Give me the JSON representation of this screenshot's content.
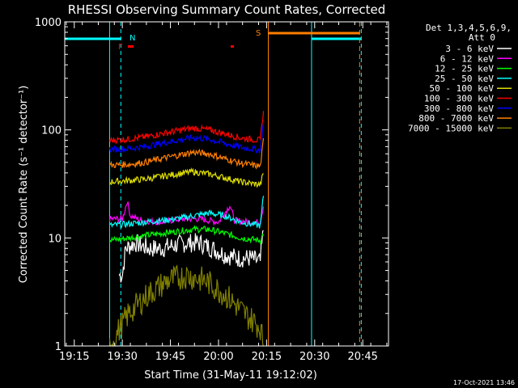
{
  "chart_data": {
    "type": "line",
    "title": "RHESSI Observing Summary Count Rates, Corrected",
    "xlabel": "Start Time (31-May-11 19:12:02)",
    "ylabel": "Corrected Count Rate (s⁻¹ detector⁻¹)",
    "y_scale": "log",
    "ylim": [
      1,
      1000
    ],
    "xlim_minutes": [
      0,
      101
    ],
    "x_tick_labels": [
      "19:15",
      "19:30",
      "19:45",
      "20:00",
      "20:15",
      "20:30",
      "20:45"
    ],
    "x_ticks_minutes": [
      2.97,
      17.97,
      32.97,
      47.97,
      62.97,
      77.97,
      92.97
    ],
    "y_tick_labels": [
      "1",
      "10",
      "100",
      "1000"
    ],
    "y_ticks": [
      1,
      10,
      100,
      1000
    ],
    "grid": false,
    "legend_placement": "top-right",
    "legend_header": [
      "Det 1,3,4,5,6,9,",
      "Att 0"
    ],
    "footer_date": "17-Oct-2021 13:46",
    "markers": {
      "N": "N",
      "F": "F",
      "S": "S"
    },
    "series": [
      {
        "name": "3 - 6 keV",
        "color": "#ffffff",
        "values_by_minute": [
          [
            17,
            4.5
          ],
          [
            18,
            4.6
          ],
          [
            19,
            8
          ],
          [
            22,
            9
          ],
          [
            26,
            8
          ],
          [
            30,
            8
          ],
          [
            34,
            8.5
          ],
          [
            38,
            9
          ],
          [
            42,
            9
          ],
          [
            46,
            8
          ],
          [
            50,
            7
          ],
          [
            54,
            6.5
          ],
          [
            58,
            6.5
          ],
          [
            61,
            6
          ],
          [
            62,
            12
          ]
        ]
      },
      {
        "name": "6 - 12 keV",
        "color": "#ff00ff",
        "values_by_minute": [
          [
            14,
            15
          ],
          [
            18,
            15
          ],
          [
            19.5,
            22
          ],
          [
            20.5,
            16
          ],
          [
            24,
            14.5
          ],
          [
            30,
            14
          ],
          [
            36,
            15
          ],
          [
            42,
            15
          ],
          [
            48,
            14
          ],
          [
            51.5,
            20
          ],
          [
            53,
            14.5
          ],
          [
            58,
            14
          ],
          [
            61,
            14
          ],
          [
            62,
            20
          ]
        ]
      },
      {
        "name": "12 - 25 keV",
        "color": "#00ff00",
        "values_by_minute": [
          [
            14,
            9.5
          ],
          [
            20,
            10
          ],
          [
            25,
            10.5
          ],
          [
            30,
            11
          ],
          [
            35,
            11.5
          ],
          [
            40,
            12
          ],
          [
            45,
            12
          ],
          [
            50,
            11
          ],
          [
            55,
            10
          ],
          [
            61,
            9.5
          ],
          [
            62,
            11
          ]
        ]
      },
      {
        "name": "25 - 50 keV",
        "color": "#00ffff",
        "values_by_minute": [
          [
            14,
            13
          ],
          [
            20,
            13.5
          ],
          [
            25,
            14
          ],
          [
            30,
            14.5
          ],
          [
            35,
            15
          ],
          [
            40,
            16
          ],
          [
            45,
            17
          ],
          [
            50,
            16
          ],
          [
            55,
            14
          ],
          [
            61,
            13
          ],
          [
            62,
            25
          ]
        ]
      },
      {
        "name": "50 - 100 keV",
        "color": "#dddd00",
        "values_by_minute": [
          [
            14,
            33
          ],
          [
            20,
            34
          ],
          [
            25,
            35
          ],
          [
            30,
            37
          ],
          [
            35,
            39
          ],
          [
            40,
            41
          ],
          [
            45,
            39
          ],
          [
            50,
            36
          ],
          [
            55,
            33
          ],
          [
            61,
            31
          ],
          [
            62,
            40
          ]
        ]
      },
      {
        "name": "100 - 300 keV",
        "color": "#ff0000",
        "values_by_minute": [
          [
            14,
            80
          ],
          [
            20,
            82
          ],
          [
            25,
            86
          ],
          [
            30,
            92
          ],
          [
            35,
            98
          ],
          [
            40,
            104
          ],
          [
            45,
            100
          ],
          [
            50,
            92
          ],
          [
            55,
            84
          ],
          [
            61,
            80
          ],
          [
            62,
            150
          ]
        ]
      },
      {
        "name": "300 - 800 keV",
        "color": "#0000ff",
        "values_by_minute": [
          [
            14,
            66
          ],
          [
            20,
            67
          ],
          [
            25,
            70
          ],
          [
            30,
            75
          ],
          [
            35,
            80
          ],
          [
            40,
            85
          ],
          [
            45,
            82
          ],
          [
            50,
            75
          ],
          [
            55,
            69
          ],
          [
            61,
            65
          ],
          [
            62,
            120
          ]
        ]
      },
      {
        "name": "800 - 7000 keV",
        "color": "#ff7f00",
        "values_by_minute": [
          [
            14,
            47
          ],
          [
            20,
            48
          ],
          [
            25,
            50
          ],
          [
            30,
            54
          ],
          [
            35,
            58
          ],
          [
            40,
            62
          ],
          [
            45,
            60
          ],
          [
            50,
            54
          ],
          [
            55,
            49
          ],
          [
            61,
            46
          ],
          [
            62,
            80
          ]
        ]
      },
      {
        "name": "7000 - 15000 keV",
        "color": "#808000",
        "values_by_minute": [
          [
            14,
            1
          ],
          [
            20,
            2
          ],
          [
            26,
            3
          ],
          [
            32,
            4
          ],
          [
            38,
            4.5
          ],
          [
            44,
            4
          ],
          [
            50,
            3
          ],
          [
            56,
            2
          ],
          [
            61,
            1.5
          ],
          [
            62,
            1
          ]
        ]
      }
    ],
    "flags": {
      "attenuator_cyan_segments_minutes": [
        [
          0,
          17.5
        ],
        [
          77,
          92.5
        ]
      ],
      "saa_orange_segment_minutes": [
        63.5,
        92
      ]
    }
  }
}
